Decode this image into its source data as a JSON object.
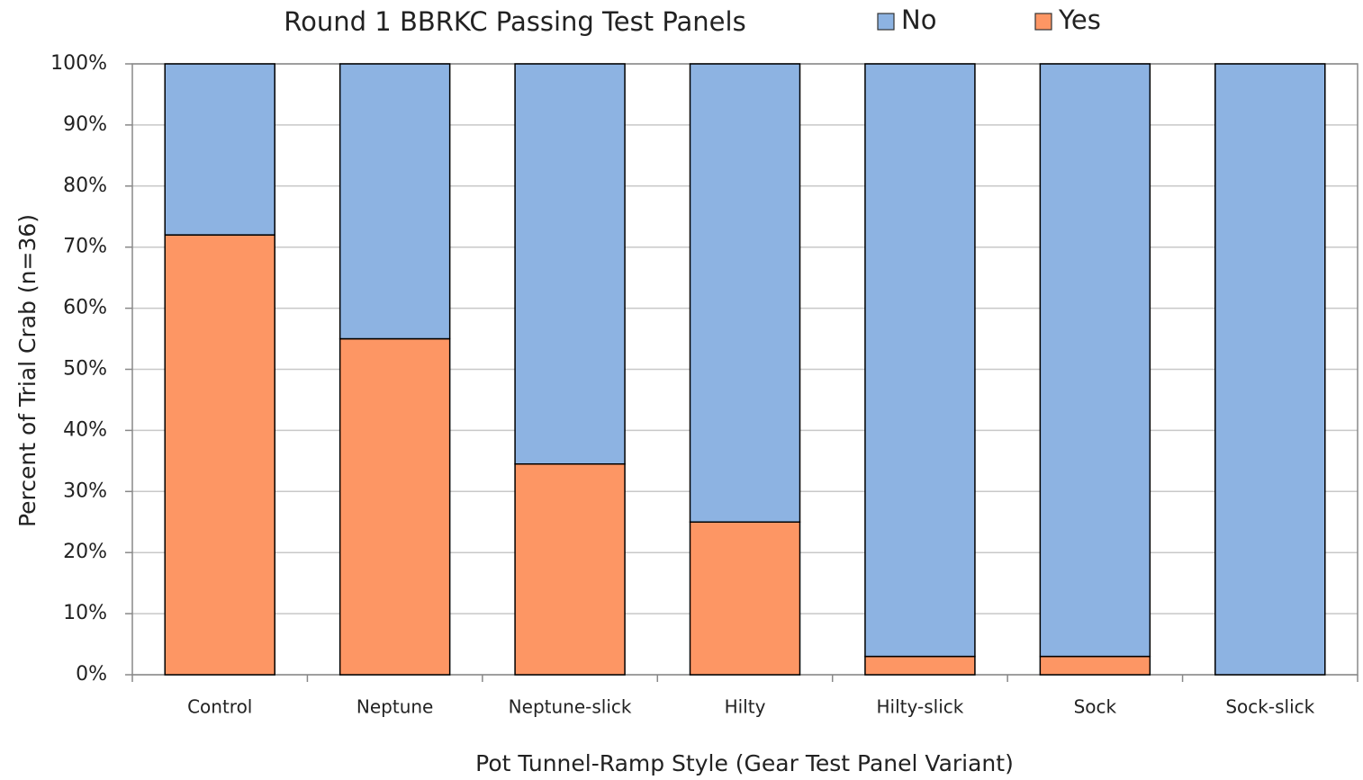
{
  "chart_data": {
    "type": "stacked_bar",
    "title": "Round 1 BBRKC Passing Test Panels",
    "x_label": "Pot Tunnel-Ramp Style (Gear Test Panel Variant)",
    "y_label": "Percent of Trial Crab (n=36)",
    "categories": [
      "Control",
      "Neptune",
      "Neptune-slick",
      "Hilty",
      "Hilty-slick",
      "Sock",
      "Sock-slick"
    ],
    "series": [
      {
        "name": "No",
        "color": "#8db3e2",
        "values": [
          28,
          45,
          65.5,
          75,
          97,
          97,
          100
        ]
      },
      {
        "name": "Yes",
        "color": "#fd9664",
        "values": [
          72,
          55,
          34.5,
          25,
          3,
          3,
          0
        ]
      }
    ],
    "ylim": [
      0,
      100
    ],
    "yticks": [
      {
        "value": 0,
        "label": "0%"
      },
      {
        "value": 10,
        "label": "10%"
      },
      {
        "value": 20,
        "label": "20%"
      },
      {
        "value": 30,
        "label": "30%"
      },
      {
        "value": 40,
        "label": "40%"
      },
      {
        "value": 50,
        "label": "50%"
      },
      {
        "value": 60,
        "label": "60%"
      },
      {
        "value": 70,
        "label": "70%"
      },
      {
        "value": 80,
        "label": "80%"
      },
      {
        "value": 90,
        "label": "90%"
      },
      {
        "value": 100,
        "label": "100%"
      }
    ],
    "grid": true,
    "legend": "top"
  }
}
